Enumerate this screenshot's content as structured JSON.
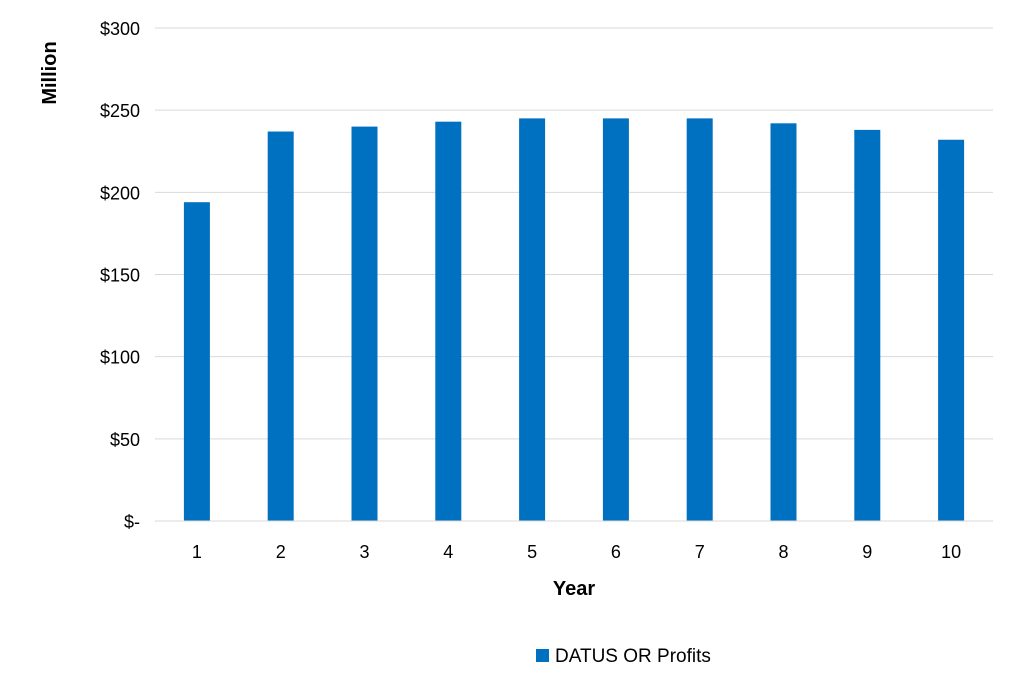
{
  "chart_data": {
    "type": "bar",
    "categories": [
      "1",
      "2",
      "3",
      "4",
      "5",
      "6",
      "7",
      "8",
      "9",
      "10"
    ],
    "series": [
      {
        "name": "DATUS OR Profits",
        "values": [
          194,
          237,
          240,
          243,
          245,
          245,
          245,
          242,
          238,
          232
        ],
        "color": "#0070C0"
      }
    ],
    "xlabel": "Year",
    "ylabel": "Million",
    "ylim": [
      0,
      300
    ],
    "yticks": [
      0,
      50,
      100,
      150,
      200,
      250,
      300
    ],
    "ytick_labels": [
      "$-",
      "$50",
      "$100",
      "$150",
      "$200",
      "$250",
      "$300"
    ],
    "grid": true,
    "grid_color": "#d9d9d9",
    "legend_position": "bottom"
  }
}
